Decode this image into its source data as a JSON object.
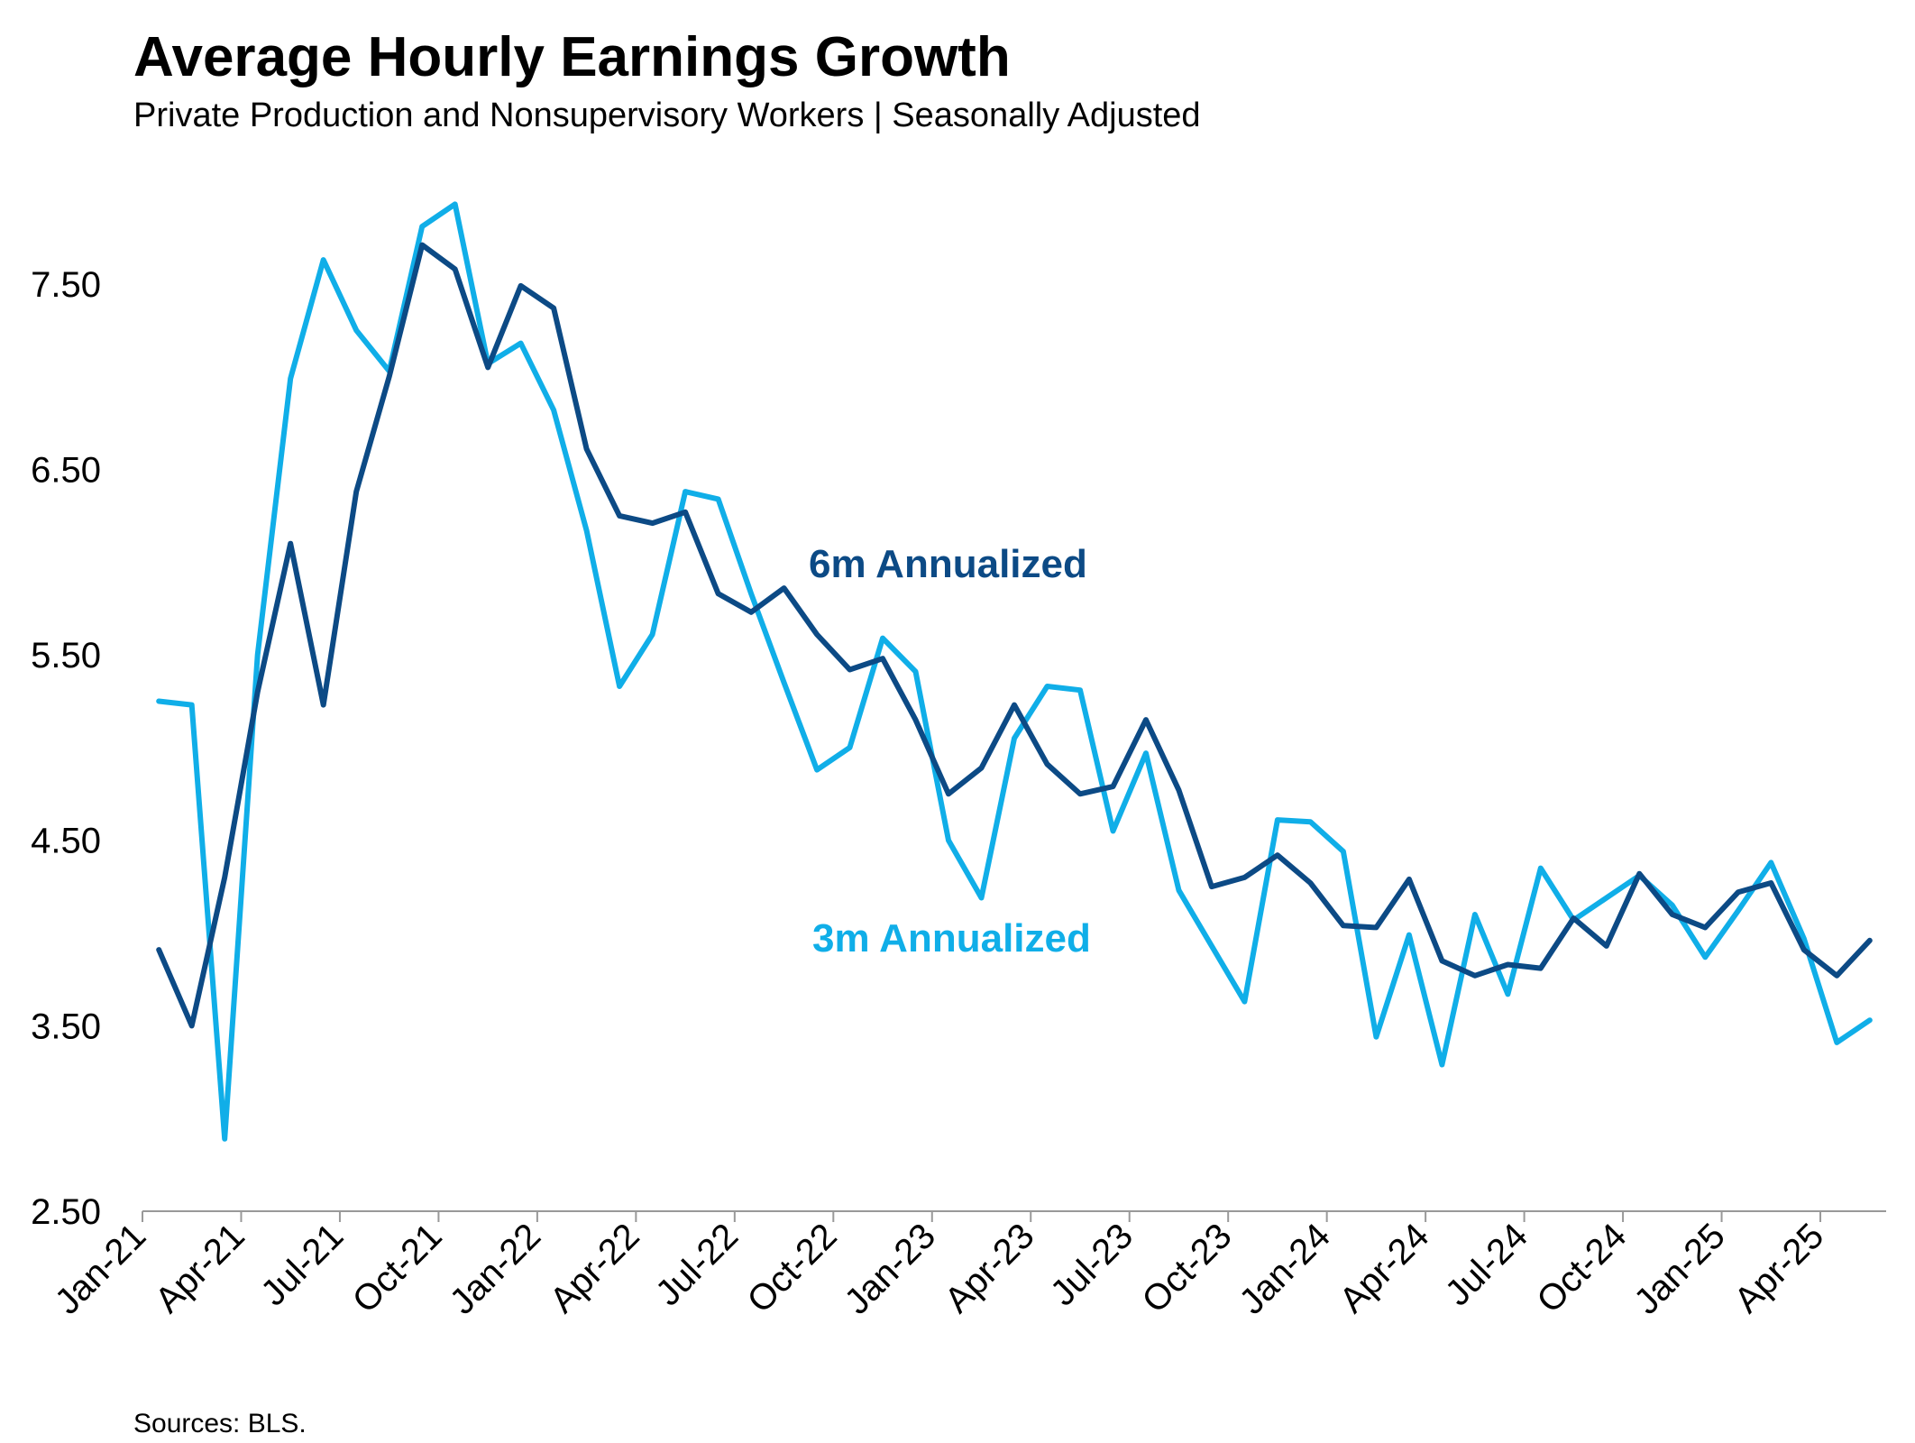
{
  "chart_data": {
    "type": "line",
    "title": "Average Hourly Earnings Growth",
    "subtitle": "Private Production and Nonsupervisory Workers | Seasonally Adjusted",
    "source": "Sources: BLS.",
    "categories": [
      "Jan-21",
      null,
      null,
      "Apr-21",
      null,
      null,
      "Jul-21",
      null,
      null,
      "Oct-21",
      null,
      null,
      "Jan-22",
      null,
      null,
      "Apr-22",
      null,
      null,
      "Jul-22",
      null,
      null,
      "Oct-22",
      null,
      null,
      "Jan-23",
      null,
      null,
      "Apr-23",
      null,
      null,
      "Jul-23",
      null,
      null,
      "Oct-23",
      null,
      null,
      "Jan-24",
      null,
      null,
      "Apr-24",
      null,
      null,
      "Jul-24",
      null,
      null,
      "Oct-24",
      null,
      null,
      "Jan-25",
      null,
      null,
      "Apr-25",
      null
    ],
    "series": [
      {
        "name": "6m Annualized",
        "color": "#0c4a85",
        "values": [
          3.91,
          3.5,
          4.3,
          5.3,
          6.1,
          5.23,
          6.38,
          7.0,
          7.71,
          7.58,
          7.05,
          7.49,
          7.37,
          6.61,
          6.25,
          6.21,
          6.27,
          5.83,
          5.73,
          5.86,
          5.61,
          5.42,
          5.48,
          5.15,
          4.75,
          4.89,
          5.23,
          4.91,
          4.75,
          4.79,
          5.15,
          4.77,
          4.25,
          4.3,
          4.42,
          4.27,
          4.04,
          4.03,
          4.29,
          3.85,
          3.77,
          3.83,
          3.81,
          4.08,
          3.93,
          4.32,
          4.1,
          4.03,
          4.22,
          4.27,
          3.91,
          3.77,
          3.96
        ]
      },
      {
        "name": "3m Annualized",
        "color": "#10aee8",
        "values": [
          5.25,
          5.23,
          2.89,
          5.5,
          6.99,
          7.63,
          7.25,
          7.03,
          7.81,
          7.93,
          7.07,
          7.18,
          6.82,
          6.17,
          5.33,
          5.61,
          6.38,
          6.34,
          5.83,
          5.35,
          4.88,
          5.0,
          5.59,
          5.41,
          4.5,
          4.19,
          5.05,
          5.33,
          5.31,
          4.55,
          4.97,
          4.23,
          3.93,
          3.63,
          4.61,
          4.6,
          4.44,
          3.44,
          3.99,
          3.29,
          4.1,
          3.67,
          4.35,
          4.07,
          4.19,
          4.31,
          4.15,
          3.87,
          4.12,
          4.38,
          3.97,
          3.41,
          3.53
        ]
      }
    ],
    "ylim": [
      2.5,
      8.0
    ],
    "yticks": [
      {
        "value": 2.5,
        "label": "2.50"
      },
      {
        "value": 3.5,
        "label": "3.50"
      },
      {
        "value": 4.5,
        "label": "4.50"
      },
      {
        "value": 5.5,
        "label": "5.50"
      },
      {
        "value": 6.5,
        "label": "6.50"
      },
      {
        "value": 7.5,
        "label": "7.50"
      }
    ],
    "grid": false
  }
}
